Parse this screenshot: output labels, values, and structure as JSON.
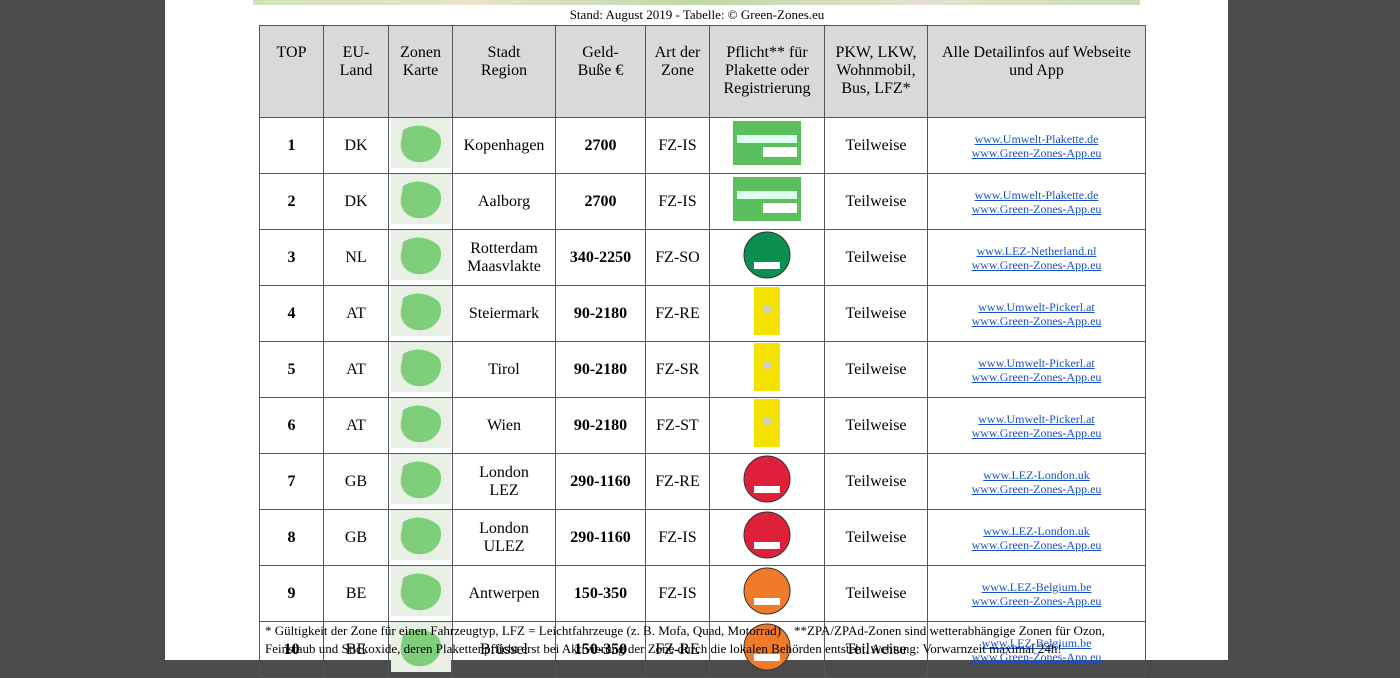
{
  "caption": "Stand: August 2019 - Tabelle: © Green-Zones.eu",
  "table": {
    "header": [
      "TOP",
      "EU-\nLand",
      "Zonen\nKarte",
      "Stadt\nRegion",
      "Geld-\nBuße €",
      "Art der\nZone",
      "Pflicht** für\nPlakette oder\nRegistrierung",
      "PKW, LKW,\nWohnmobil,\nBus, LFZ*",
      "Alle Detailinfos auf Webseite\nund App"
    ],
    "rows": [
      {
        "top": "1",
        "land": "DK",
        "city": "Kopenhagen",
        "fine": "2700",
        "zone": "FZ-IS",
        "vehicles": "Teilweise",
        "links": [
          "www.Umwelt-Plakette.de",
          "www.Green-Zones-App.eu"
        ]
      },
      {
        "top": "2",
        "land": "DK",
        "city": "Aalborg",
        "fine": "2700",
        "zone": "FZ-IS",
        "vehicles": "Teilweise",
        "links": [
          "www.Umwelt-Plakette.de",
          "www.Green-Zones-App.eu"
        ]
      },
      {
        "top": "3",
        "land": "NL",
        "city": "Rotterdam\nMaasvlakte",
        "fine": "340-2250",
        "zone": "FZ-SO",
        "vehicles": "Teilweise",
        "links": [
          "www.LEZ-Netherland.nl",
          "www.Green-Zones-App.eu"
        ]
      },
      {
        "top": "4",
        "land": "AT",
        "city": "Steiermark",
        "fine": "90-2180",
        "zone": "FZ-RE",
        "vehicles": "Teilweise",
        "links": [
          "www.Umwelt-Pickerl.at",
          "www.Green-Zones-App.eu"
        ]
      },
      {
        "top": "5",
        "land": "AT",
        "city": "Tirol",
        "fine": "90-2180",
        "zone": "FZ-SR",
        "vehicles": "Teilweise",
        "links": [
          "www.Umwelt-Pickerl.at",
          "www.Green-Zones-App.eu"
        ]
      },
      {
        "top": "6",
        "land": "AT",
        "city": "Wien",
        "fine": "90-2180",
        "zone": "FZ-ST",
        "vehicles": "Teilweise",
        "links": [
          "www.Umwelt-Pickerl.at",
          "www.Green-Zones-App.eu"
        ]
      },
      {
        "top": "7",
        "land": "GB",
        "city": "London\nLEZ",
        "fine": "290-1160",
        "zone": "FZ-RE",
        "vehicles": "Teilweise",
        "links": [
          "www.LEZ-London.uk",
          "www.Green-Zones-App.eu"
        ]
      },
      {
        "top": "8",
        "land": "GB",
        "city": "London\nULEZ",
        "fine": "290-1160",
        "zone": "FZ-IS",
        "vehicles": "Teilweise",
        "links": [
          "www.LEZ-London.uk",
          "www.Green-Zones-App.eu"
        ]
      },
      {
        "top": "9",
        "land": "BE",
        "city": "Antwerpen",
        "fine": "150-350",
        "zone": "FZ-IS",
        "vehicles": "Teilweise",
        "links": [
          "www.LEZ-Belgium.be",
          "www.Green-Zones-App.eu"
        ]
      },
      {
        "top": "10",
        "land": "BE",
        "city": "Brüssel",
        "fine": "150-350",
        "zone": "FZ-RE",
        "vehicles": "Teilweise",
        "links": [
          "www.LEZ-Belgium.be",
          "www.Green-Zones-App.eu"
        ]
      }
    ]
  },
  "footnotes": [
    "* Gültigkeit der Zone für einen Fahrzeugtyp, LFZ = Leichtfahrzeuge (z. B. Mofa, Quad, Motorrad)",
    "**ZPA/ZPAd-Zonen sind wetterabhängige Zonen für Ozon, Feinstaub und Stickoxide, deren Plakettenpflicht erst bei Aktivierung der Zone durch die lokalen Behörden entsteht. Achtung: Vorwarnzeit maximal 24h!"
  ]
}
